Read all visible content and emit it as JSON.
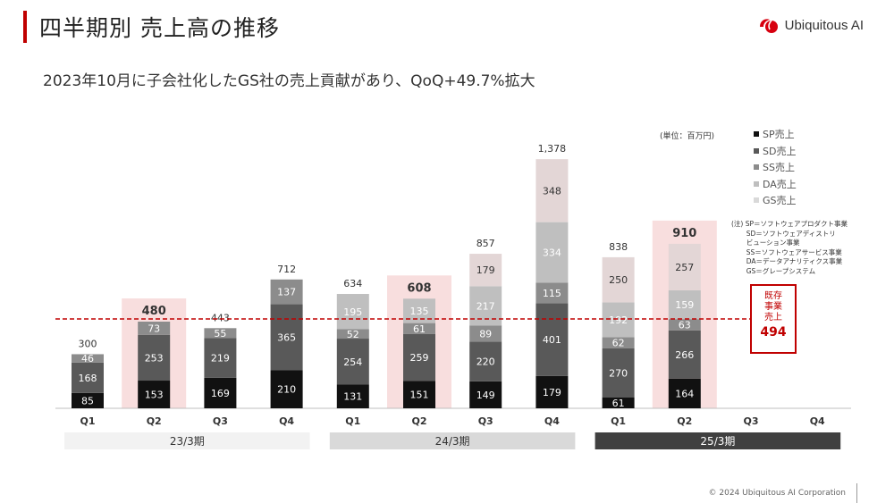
{
  "header": {
    "title": "四半期別 売上高の推移",
    "logo_text": "Ubiquitous AI",
    "subtitle": "2023年10月に子会社化したGS社の売上貢献があり、QoQ+49.7%拡大"
  },
  "unit_label": "(単位：百万円)",
  "legend": [
    {
      "label": "SP売上",
      "color": "#111111"
    },
    {
      "label": "SD売上",
      "color": "#595959"
    },
    {
      "label": "SS売上",
      "color": "#8c8c8c"
    },
    {
      "label": "DA売上",
      "color": "#bfbfbf"
    },
    {
      "label": "GS売上",
      "color": "#d9d9d9"
    }
  ],
  "note": "(注) SP＝ソフトウェアプロダクト事業\n       SD＝ソフトウェアディストリ\n       ビューション事業\n       SS＝ソフトウェアサービス事業\n       DA＝データアナリティクス事業\n       GS＝グレープシステム",
  "existing_business": {
    "label": "既存\n事業\n売上",
    "value": "494"
  },
  "footer": "© 2024 Ubiquitous AI Corporation",
  "chart_data": {
    "type": "bar",
    "stacked": true,
    "categories": [
      "Q1",
      "Q2",
      "Q3",
      "Q4",
      "Q1",
      "Q2",
      "Q3",
      "Q4",
      "Q1",
      "Q2",
      "Q3",
      "Q4"
    ],
    "periods": [
      {
        "label": "23/3期",
        "quarters": [
          0,
          1,
          2,
          3
        ],
        "color": "#f2f2f2",
        "text_color": "#333333"
      },
      {
        "label": "24/3期",
        "quarters": [
          4,
          5,
          6,
          7
        ],
        "color": "#d9d9d9",
        "text_color": "#333333"
      },
      {
        "label": "25/3期",
        "quarters": [
          8,
          9,
          10,
          11
        ],
        "color": "#404040",
        "text_color": "#ffffff"
      }
    ],
    "series": [
      {
        "name": "SP売上",
        "color": "#111111",
        "label_color": "#ffffff",
        "values": [
          85,
          153,
          169,
          210,
          131,
          151,
          149,
          179,
          61,
          164,
          null,
          null
        ]
      },
      {
        "name": "SD売上",
        "color": "#595959",
        "label_color": "#ffffff",
        "values": [
          168,
          253,
          219,
          365,
          254,
          259,
          220,
          401,
          270,
          266,
          null,
          null
        ]
      },
      {
        "name": "SS売上",
        "color": "#8c8c8c",
        "label_color": "#ffffff",
        "values": [
          46,
          73,
          55,
          137,
          52,
          61,
          89,
          115,
          62,
          63,
          null,
          null
        ]
      },
      {
        "name": "DA売上",
        "color": "#bfbfbf",
        "label_color": "#ffffff",
        "values": [
          null,
          null,
          null,
          null,
          195,
          135,
          217,
          334,
          192,
          159,
          null,
          null
        ]
      },
      {
        "name": "GS売上",
        "color": "#e3d6d6",
        "label_color": "#333333",
        "values": [
          null,
          null,
          null,
          null,
          null,
          null,
          179,
          348,
          250,
          257,
          null,
          null
        ]
      }
    ],
    "totals": [
      "300",
      "480",
      "443",
      "712",
      "634",
      "608",
      "857",
      "1,378",
      "838",
      "910",
      "",
      ""
    ],
    "highlighted": [
      1,
      5,
      9
    ],
    "highlight_color": "#f8dede",
    "reference_line": {
      "value": 494,
      "style": "dashed",
      "color": "#c00000"
    }
  }
}
